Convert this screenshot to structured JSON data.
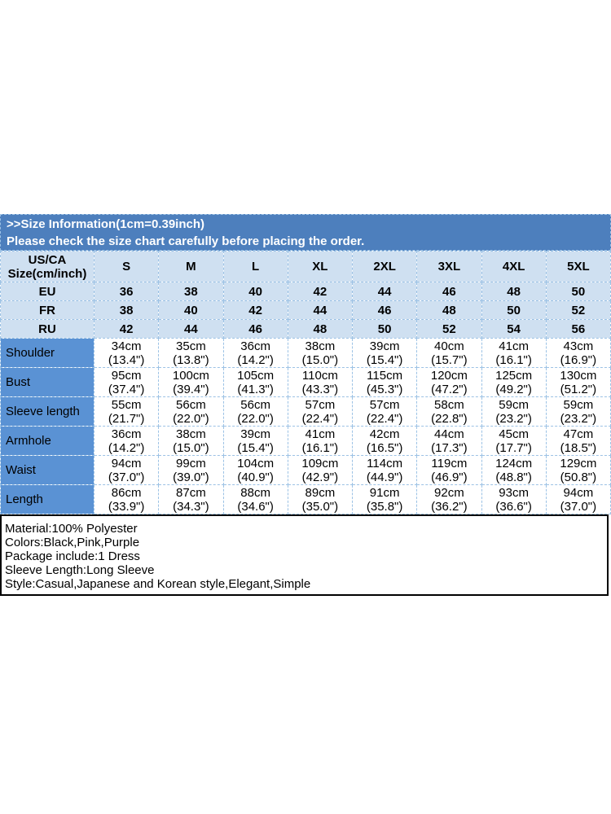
{
  "banner": {
    "title": ">>Size Information(1cm=0.39inch)",
    "subtitle": "Please check the size chart carefully before placing the order."
  },
  "size_table": {
    "corner": {
      "line1": "US/CA",
      "line2": "Size(cm/inch)"
    },
    "size_columns": [
      "S",
      "M",
      "L",
      "XL",
      "2XL",
      "3XL",
      "4XL",
      "5XL"
    ],
    "region_rows": [
      {
        "label": "EU",
        "values": [
          "36",
          "38",
          "40",
          "42",
          "44",
          "46",
          "48",
          "50"
        ]
      },
      {
        "label": "FR",
        "values": [
          "38",
          "40",
          "42",
          "44",
          "46",
          "48",
          "50",
          "52"
        ]
      },
      {
        "label": "RU",
        "values": [
          "42",
          "44",
          "46",
          "48",
          "50",
          "52",
          "54",
          "56"
        ]
      }
    ],
    "measurement_rows": [
      {
        "label": "Shoulder",
        "cm": [
          "34cm",
          "35cm",
          "36cm",
          "38cm",
          "39cm",
          "40cm",
          "41cm",
          "43cm"
        ],
        "inch": [
          "(13.4\")",
          "(13.8\")",
          "(14.2\")",
          "(15.0\")",
          "(15.4\")",
          "(15.7\")",
          "(16.1\")",
          "(16.9\")"
        ]
      },
      {
        "label": "Bust",
        "cm": [
          "95cm",
          "100cm",
          "105cm",
          "110cm",
          "115cm",
          "120cm",
          "125cm",
          "130cm"
        ],
        "inch": [
          "(37.4\")",
          "(39.4\")",
          "(41.3\")",
          "(43.3\")",
          "(45.3\")",
          "(47.2\")",
          "(49.2\")",
          "(51.2\")"
        ]
      },
      {
        "label": "Sleeve length",
        "cm": [
          "55cm",
          "56cm",
          "56cm",
          "57cm",
          "57cm",
          "58cm",
          "59cm",
          "59cm"
        ],
        "inch": [
          "(21.7\")",
          "(22.0\")",
          "(22.0\")",
          "(22.4\")",
          "(22.4\")",
          "(22.8\")",
          "(23.2\")",
          "(23.2\")"
        ]
      },
      {
        "label": "Armhole",
        "cm": [
          "36cm",
          "38cm",
          "39cm",
          "41cm",
          "42cm",
          "44cm",
          "45cm",
          "47cm"
        ],
        "inch": [
          "(14.2\")",
          "(15.0\")",
          "(15.4\")",
          "(16.1\")",
          "(16.5\")",
          "(17.3\")",
          "(17.7\")",
          "(18.5\")"
        ]
      },
      {
        "label": "Waist",
        "cm": [
          "94cm",
          "99cm",
          "104cm",
          "109cm",
          "114cm",
          "119cm",
          "124cm",
          "129cm"
        ],
        "inch": [
          "(37.0\")",
          "(39.0\")",
          "(40.9\")",
          "(42.9\")",
          "(44.9\")",
          "(46.9\")",
          "(48.8\")",
          "(50.8\")"
        ]
      },
      {
        "label": "Length",
        "cm": [
          "86cm",
          "87cm",
          "88cm",
          "89cm",
          "91cm",
          "92cm",
          "93cm",
          "94cm"
        ],
        "inch": [
          "(33.9\")",
          "(34.3\")",
          "(34.6\")",
          "(35.0\")",
          "(35.8\")",
          "(36.2\")",
          "(36.6\")",
          "(37.0\")"
        ]
      }
    ]
  },
  "product_info": {
    "lines": [
      "Material:100% Polyester",
      "Colors:Black,Pink,Purple",
      "Package include:1 Dress",
      "Sleeve Length:Long Sleeve",
      "Style:Casual,Japanese and Korean style,Elegant,Simple"
    ]
  },
  "colors": {
    "banner_bg": "#4d7fbd",
    "header_bg": "#cfe0f1",
    "label_bg": "#5a92d4",
    "grid_line": "#9cc2e5",
    "banner_text": "#ffffff",
    "body_text": "#000000",
    "info_border": "#000000"
  }
}
